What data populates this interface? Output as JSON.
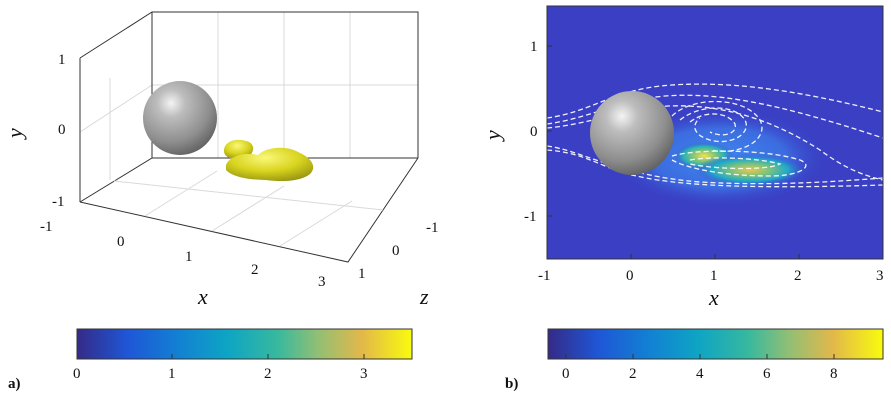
{
  "panels": [
    {
      "label": "a)",
      "axis_labels": {
        "x": "x",
        "y": "y",
        "z": "z"
      },
      "y_ticks": [
        "1",
        "0",
        "-1"
      ],
      "x_ticks": [
        "-1",
        "0",
        "1",
        "2",
        "3"
      ],
      "z_ticks": [
        "-1",
        "0",
        "1"
      ],
      "colorbar_ticks": [
        "0",
        "1",
        "2",
        "3"
      ]
    },
    {
      "label": "b)",
      "axis_labels": {
        "x": "x",
        "y": "y"
      },
      "y_ticks": [
        "1",
        "0",
        "-1"
      ],
      "x_ticks": [
        "-1",
        "0",
        "1",
        "2",
        "3"
      ],
      "colorbar_ticks": [
        "0",
        "2",
        "4",
        "6",
        "8"
      ]
    }
  ],
  "chart_data": [
    {
      "type": "other",
      "description_kind": "3d-isosurface",
      "xlim": [
        -1,
        3
      ],
      "ylim": [
        -1,
        1
      ],
      "zlim": [
        -1,
        1
      ],
      "sphere_center": [
        0,
        0,
        0
      ],
      "colorbar_range": [
        0,
        3.5
      ],
      "colors": {
        "sphere": "#9a9a9a",
        "isosurface": "#e3e02a"
      }
    },
    {
      "type": "heatmap",
      "xlim": [
        -1,
        3
      ],
      "ylim": [
        -1.5,
        1.5
      ],
      "sphere_center": [
        0,
        0
      ],
      "colorbar_range": [
        0,
        9.5
      ],
      "colors": {
        "background": "#3a3fc4",
        "streamlines": "#ffffff"
      }
    }
  ]
}
